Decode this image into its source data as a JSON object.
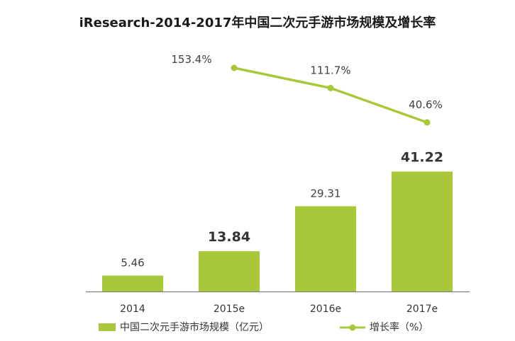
{
  "chart_data": {
    "type": "bar",
    "title": "iResearch-2014-2017年中国二次元手游市场规模及增长率",
    "categories": [
      "2014",
      "2015e",
      "2016e",
      "2017e"
    ],
    "series": [
      {
        "name": "中国二次元手游市场规模（亿元）",
        "type": "bar",
        "values": [
          5.46,
          13.84,
          29.31,
          41.22
        ],
        "labels": [
          "5.46",
          "13.84",
          "29.31",
          "41.22"
        ],
        "bold_labels": [
          false,
          true,
          false,
          true
        ],
        "color": "#a8c83a"
      },
      {
        "name": "增长率（%）",
        "type": "line",
        "values": [
          null,
          153.4,
          111.7,
          40.6
        ],
        "labels": [
          "",
          "153.4%",
          "111.7%",
          "40.6%"
        ],
        "color": "#a8c83a"
      }
    ],
    "xlabel": "",
    "ylabel": "",
    "legend_position": "bottom",
    "grid": false
  }
}
